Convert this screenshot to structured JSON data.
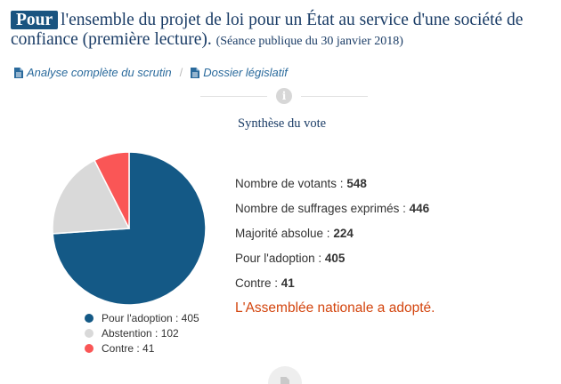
{
  "header": {
    "badge": "Pour",
    "title": "l'ensemble du projet de loi pour un État au service d'une société de confiance (première lecture).",
    "seance": "(Séance publique du 30 janvier 2018)"
  },
  "links": [
    {
      "label": "Analyse complète du scrutin",
      "icon": "document-icon"
    },
    {
      "label": "Dossier législatif",
      "icon": "document-icon"
    }
  ],
  "link_separator": "/",
  "section_title": "Synthèse du vote",
  "chart_data": {
    "type": "pie",
    "slices": [
      {
        "label": "Pour l'adoption : 405",
        "value": 405,
        "color": "#145986"
      },
      {
        "label": "Abstention : 102",
        "value": 102,
        "color": "#d9d9d9"
      },
      {
        "label": "Contre : 41",
        "value": 41,
        "color": "#fa5656"
      }
    ],
    "legend_position": "bottom"
  },
  "stats": [
    {
      "label": "Nombre de votants : ",
      "value": "548"
    },
    {
      "label": "Nombre de suffrages exprimés : ",
      "value": "446"
    },
    {
      "label": "Majorité absolue : ",
      "value": "224"
    },
    {
      "label": "Pour l'adoption : ",
      "value": "405"
    },
    {
      "label": "Contre : ",
      "value": "41"
    }
  ],
  "result": "L'Assemblée nationale a adopté."
}
